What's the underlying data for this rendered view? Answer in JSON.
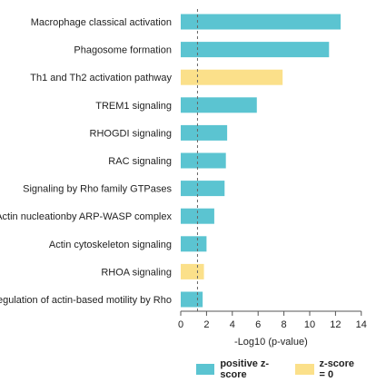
{
  "chart_data": {
    "type": "bar",
    "orientation": "horizontal",
    "categories": [
      "Macrophage classical activation",
      "Phagosome formation",
      "Th1 and Th2 activation pathway",
      "TREM1 signaling",
      "RHOGDI signaling",
      "RAC signaling",
      "Signaling by Rho family GTPases",
      "Actin nucleationby ARP-WASP complex",
      "Actin cytoskeleton signaling",
      "RHOA signaling",
      "Regulation of actin-based motility by Rho"
    ],
    "values": [
      12.4,
      11.5,
      7.9,
      5.9,
      3.6,
      3.5,
      3.4,
      2.6,
      2.0,
      1.8,
      1.7
    ],
    "z_score_group": [
      "positive",
      "positive",
      "zero",
      "positive",
      "positive",
      "positive",
      "positive",
      "positive",
      "positive",
      "zero",
      "positive"
    ],
    "xlabel": "-Log10 (p-value)",
    "xlim": [
      0,
      14
    ],
    "xticks": [
      0,
      2,
      4,
      6,
      8,
      10,
      12,
      14
    ],
    "threshold_line": 1.3,
    "grid": false,
    "legend": [
      {
        "label": "positive z-score",
        "color": "#5bc4d1"
      },
      {
        "label": "z-score = 0",
        "color": "#fbe08a"
      }
    ],
    "legend_position": "bottom-right"
  }
}
